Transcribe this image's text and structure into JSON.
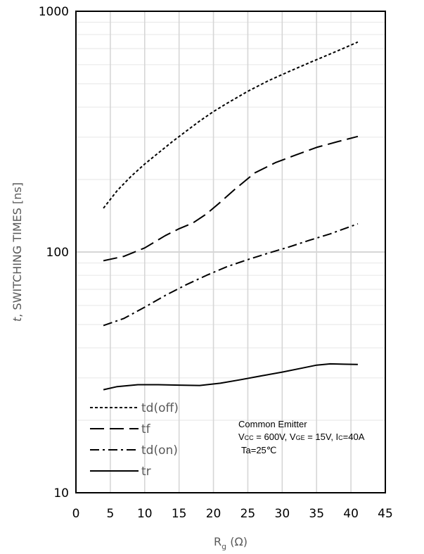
{
  "chart_data": {
    "type": "line",
    "title": "",
    "xlabel_main": "R",
    "xlabel_sub": "g",
    "xlabel_unit": " (Ω)",
    "ylabel_italic": "t",
    "ylabel_rest": ", SWITCHING TIMES [ns]",
    "xlim": [
      0,
      45
    ],
    "ylim": [
      10,
      1000
    ],
    "y_scale": "log",
    "grid": true,
    "x_ticks": [
      0,
      5,
      10,
      15,
      20,
      25,
      30,
      35,
      40,
      45
    ],
    "y_ticks": [
      10,
      100,
      1000
    ],
    "x_tick_labels": [
      "0",
      "5",
      "10",
      "15",
      "20",
      "25",
      "30",
      "35",
      "40",
      "45"
    ],
    "y_tick_labels": [
      "10",
      "100",
      "1000"
    ],
    "legend_position": "bottom-left",
    "series": [
      {
        "name": "td(off)",
        "style": "dotted",
        "x": [
          4,
          6,
          8,
          10,
          12,
          14,
          16,
          18,
          20,
          22,
          25,
          28,
          31,
          34,
          37,
          39,
          41
        ],
        "y": [
          152,
          180,
          206,
          232,
          258,
          287,
          317,
          350,
          383,
          415,
          465,
          515,
          562,
          612,
          665,
          703,
          745
        ]
      },
      {
        "name": "tf",
        "style": "dashed",
        "x": [
          4,
          7,
          10,
          13,
          15,
          17,
          19,
          21,
          23,
          26,
          29,
          32,
          35,
          38,
          41
        ],
        "y": [
          92,
          96,
          104,
          117,
          125,
          132,
          144,
          161,
          181,
          213,
          235,
          253,
          272,
          287,
          302
        ]
      },
      {
        "name": "td(on)",
        "style": "dashdot",
        "x": [
          4,
          7,
          10,
          13,
          16,
          19,
          22,
          25,
          28,
          31,
          34,
          37,
          41
        ],
        "y": [
          49.5,
          53,
          59,
          66,
          73,
          80,
          87,
          93,
          99,
          105,
          112,
          119,
          131
        ]
      },
      {
        "name": "tr",
        "style": "solid",
        "x": [
          4,
          6,
          9,
          12,
          15,
          18,
          21,
          24,
          27,
          30,
          33,
          35,
          37,
          39,
          41
        ],
        "y": [
          26.8,
          27.6,
          28.1,
          28.1,
          28.0,
          27.9,
          28.5,
          29.5,
          30.6,
          31.7,
          33.0,
          33.9,
          34.3,
          34.2,
          34.1
        ]
      }
    ],
    "annotation": {
      "line1": "Common Emitter",
      "line2_parts": [
        {
          "t": "V",
          "sub": false
        },
        {
          "t": "CC",
          "sub": true
        },
        {
          "t": " = 600V, V",
          "sub": false
        },
        {
          "t": "GE",
          "sub": true
        },
        {
          "t": " = 15V, I",
          "sub": false
        },
        {
          "t": "C",
          "sub": true
        },
        {
          "t": "=40A",
          "sub": false
        }
      ],
      "line3": "Ta=25℃"
    }
  }
}
